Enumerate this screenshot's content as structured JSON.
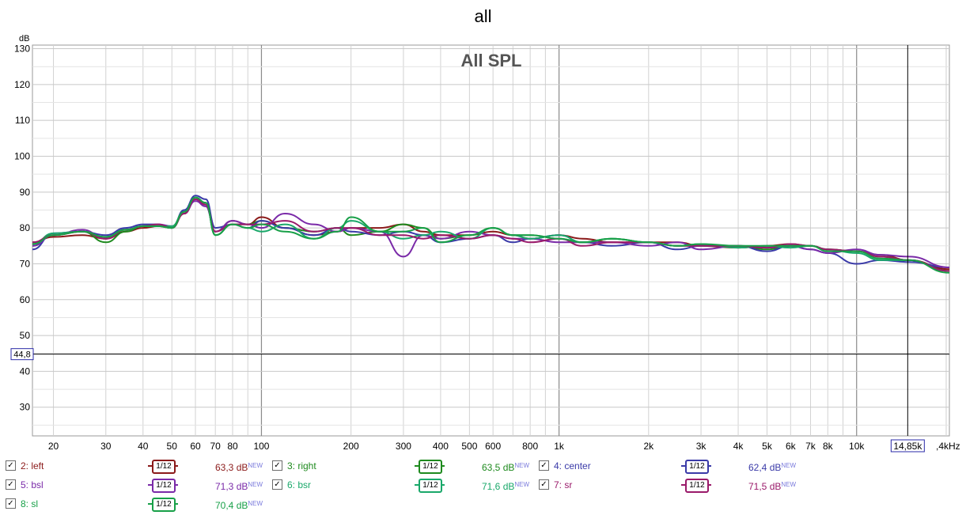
{
  "window_title": "all",
  "chart_data": {
    "type": "line",
    "title": "All SPL",
    "ylabel": "dB",
    "xlabel": "",
    "x_scale": "log",
    "xlim": [
      17,
      20500
    ],
    "ylim": [
      22,
      131
    ],
    "grid": true,
    "y_ticks": [
      30,
      40,
      50,
      60,
      70,
      80,
      90,
      100,
      110,
      120,
      130
    ],
    "x_ticks": [
      {
        "value": 20,
        "label": "20"
      },
      {
        "value": 30,
        "label": "30"
      },
      {
        "value": 40,
        "label": "40"
      },
      {
        "value": 50,
        "label": "50"
      },
      {
        "value": 60,
        "label": "60"
      },
      {
        "value": 70,
        "label": "70"
      },
      {
        "value": 80,
        "label": "80"
      },
      {
        "value": 100,
        "label": "100"
      },
      {
        "value": 200,
        "label": "200"
      },
      {
        "value": 300,
        "label": "300"
      },
      {
        "value": 400,
        "label": "400"
      },
      {
        "value": 500,
        "label": "500"
      },
      {
        "value": 600,
        "label": "600"
      },
      {
        "value": 800,
        "label": "800"
      },
      {
        "value": 1000,
        "label": "1k"
      },
      {
        "value": 2000,
        "label": "2k"
      },
      {
        "value": 3000,
        "label": "3k"
      },
      {
        "value": 4000,
        "label": "4k"
      },
      {
        "value": 5000,
        "label": "5k"
      },
      {
        "value": 6000,
        "label": "6k"
      },
      {
        "value": 7000,
        "label": "7k"
      },
      {
        "value": 8000,
        "label": "8k"
      },
      {
        "value": 10000,
        "label": "10k"
      }
    ],
    "x_axis_end_label": ",4kHz",
    "cursor": {
      "x_value": 14850,
      "x_label": "14,85k",
      "y_value": 44.8,
      "y_label": "44,8"
    },
    "x": [
      17,
      20,
      25,
      30,
      35,
      40,
      45,
      50,
      55,
      60,
      65,
      70,
      80,
      90,
      100,
      120,
      150,
      180,
      200,
      250,
      300,
      350,
      400,
      500,
      600,
      700,
      800,
      1000,
      1200,
      1500,
      2000,
      2500,
      3000,
      4000,
      5000,
      6000,
      7000,
      8000,
      10000,
      12000,
      15000,
      20500
    ],
    "series": [
      {
        "name": "2: left",
        "color": "#8b1a1a",
        "values": [
          76,
          77.5,
          78,
          77,
          79,
          80,
          80.5,
          80,
          84,
          88,
          87,
          79,
          82,
          81,
          83,
          80,
          78,
          79,
          80,
          80,
          81,
          79,
          78,
          78,
          79,
          78,
          77,
          78,
          77,
          76,
          76,
          76,
          75,
          74.5,
          75,
          75.5,
          75,
          74,
          73.5,
          72.5,
          71,
          68.5
        ]
      },
      {
        "name": "3: right",
        "color": "#1e8a1e",
        "values": [
          75,
          78,
          79,
          76,
          79,
          80.5,
          80.5,
          80,
          84,
          88,
          87,
          78,
          81,
          81,
          82,
          80,
          79,
          80,
          78,
          79,
          81,
          80,
          77,
          78,
          80,
          78,
          78,
          77,
          76,
          77,
          76,
          75,
          75,
          75,
          74,
          75,
          75,
          74,
          73.5,
          72,
          71,
          68
        ]
      },
      {
        "name": "4: center",
        "color": "#3a3aa8",
        "values": [
          74,
          78.5,
          79,
          78,
          80,
          81,
          81,
          80,
          85,
          89,
          88,
          80,
          81,
          80,
          82,
          80,
          78,
          80,
          79,
          78,
          79,
          78,
          76,
          77,
          78,
          76,
          77,
          78,
          76,
          75,
          76,
          74,
          75,
          75,
          73.5,
          75,
          74,
          73,
          70,
          71,
          70.5,
          69
        ]
      },
      {
        "name": "5: bsl",
        "color": "#7a2aa8",
        "values": [
          75,
          78,
          79.5,
          77,
          79.5,
          80.5,
          81,
          80.5,
          84,
          87.5,
          86,
          79,
          82,
          81,
          80,
          84,
          81,
          79,
          80,
          79,
          72,
          78,
          77,
          79,
          78,
          77,
          77,
          76,
          76,
          76,
          75,
          76,
          74,
          75,
          74.5,
          75,
          74,
          73,
          74,
          72.5,
          72,
          69
        ]
      },
      {
        "name": "6: bsr",
        "color": "#1aa86a",
        "values": [
          75.5,
          78.5,
          79,
          77.5,
          79.5,
          80.5,
          80.5,
          80.5,
          84.5,
          88.5,
          87,
          78,
          81,
          80,
          79,
          81,
          77,
          80,
          82,
          79,
          77,
          78,
          79,
          77,
          80,
          78,
          77,
          78,
          76,
          77,
          76,
          75,
          75.5,
          74.5,
          75,
          74.5,
          75,
          74,
          73,
          71,
          71,
          68
        ]
      },
      {
        "name": "7: sr",
        "color": "#9a1a6a",
        "values": [
          76,
          78,
          79,
          77,
          79.5,
          80.5,
          81,
          80,
          84,
          88,
          86.5,
          79,
          81,
          81,
          81,
          82,
          79,
          80,
          80,
          78,
          78,
          77,
          78,
          77,
          78,
          77,
          76,
          77,
          75,
          76,
          76,
          75,
          75,
          75,
          74.5,
          75.5,
          75,
          74,
          73.5,
          72,
          71,
          68
        ]
      },
      {
        "name": "8: sl",
        "color": "#18a048",
        "values": [
          75.5,
          78,
          79,
          77.5,
          79.5,
          80.5,
          80.5,
          80,
          84.5,
          88.5,
          87,
          78,
          81,
          80,
          81,
          79,
          77,
          79,
          83,
          79,
          79,
          80,
          76,
          78,
          80,
          78,
          78,
          77,
          76,
          77,
          76,
          75,
          75.5,
          75,
          75,
          75,
          75,
          73.5,
          73.5,
          71.5,
          71,
          67.5
        ]
      }
    ]
  },
  "legend": [
    {
      "name": "2: left",
      "color": "#8b1a1a",
      "smoothing": "1/12",
      "value": "63,3 dB",
      "badge": "NEW",
      "checked": "✓"
    },
    {
      "name": "3: right",
      "color": "#1e8a1e",
      "smoothing": "1/12",
      "value": "63,5 dB",
      "badge": "NEW",
      "checked": "✓"
    },
    {
      "name": "4: center",
      "color": "#3a3aa8",
      "smoothing": "1/12",
      "value": "62,4 dB",
      "badge": "NEW",
      "checked": "✓"
    },
    {
      "name": "5: bsl",
      "color": "#7a2aa8",
      "smoothing": "1/12",
      "value": "71,3 dB",
      "badge": "NEW",
      "checked": "✓"
    },
    {
      "name": "6: bsr",
      "color": "#1aa86a",
      "smoothing": "1/12",
      "value": "71,6 dB",
      "badge": "NEW",
      "checked": "✓"
    },
    {
      "name": "7: sr",
      "color": "#9a1a6a",
      "smoothing": "1/12",
      "value": "71,5 dB",
      "badge": "NEW",
      "checked": "✓"
    },
    {
      "name": "8: sl",
      "color": "#18a048",
      "smoothing": "1/12",
      "value": "70,4 dB",
      "badge": "NEW",
      "checked": "✓"
    }
  ]
}
